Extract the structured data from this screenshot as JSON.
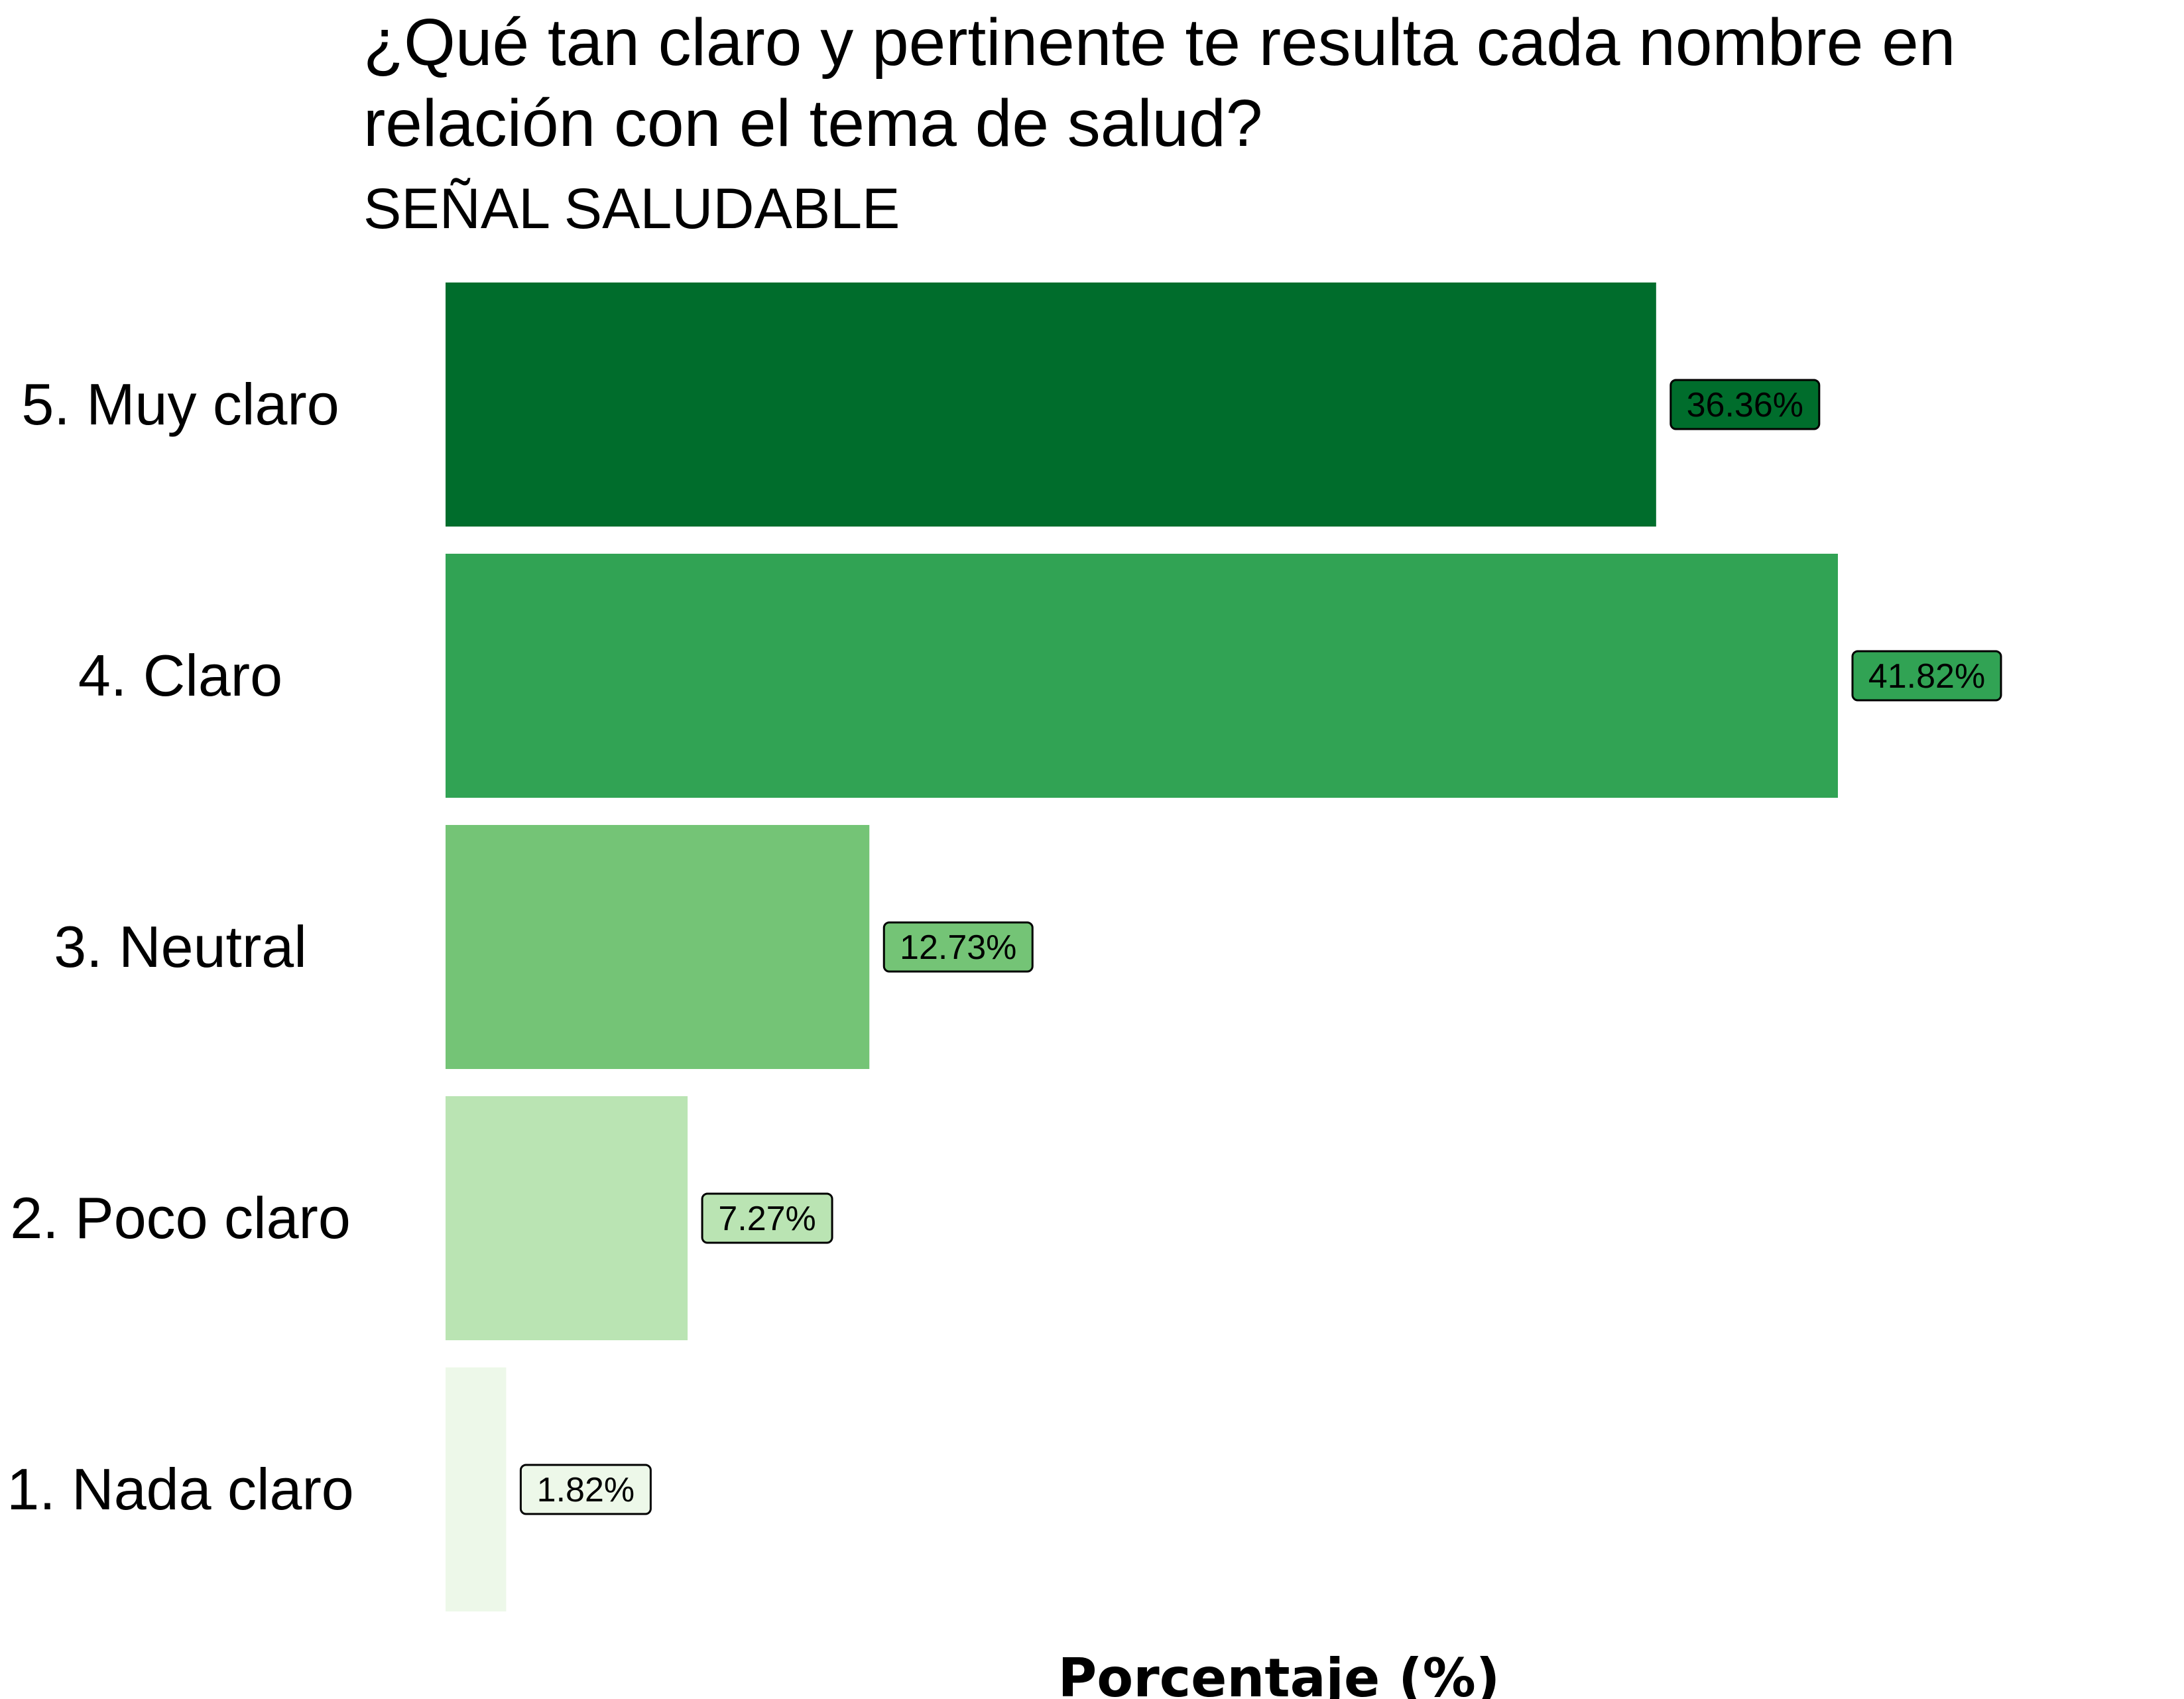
{
  "chart_data": {
    "type": "bar",
    "orientation": "horizontal",
    "title": "¿Qué tan claro y pertinente te resulta cada nombre en relación con el tema de salud?",
    "title_lines": [
      "¿Qué tan claro y pertinente te resulta cada nombre en",
      "relación con el tema de salud?"
    ],
    "subtitle": "SEÑAL SALUDABLE",
    "xlabel": "Porcentaje (%)",
    "ylabel": "",
    "xlim": [
      0,
      41.82
    ],
    "grid": false,
    "legend": "none",
    "categories": [
      "5. Muy claro",
      "4. Claro",
      "3. Neutral",
      "2. Poco claro",
      "1. Nada claro"
    ],
    "values": [
      36.36,
      41.82,
      12.73,
      7.27,
      1.82
    ],
    "value_labels": [
      "36.36%",
      "41.82%",
      "12.73%",
      "7.27%",
      "1.82%"
    ],
    "colors": [
      "#006d2c",
      "#31a354",
      "#74c476",
      "#bae4b3",
      "#edf8e9"
    ]
  }
}
